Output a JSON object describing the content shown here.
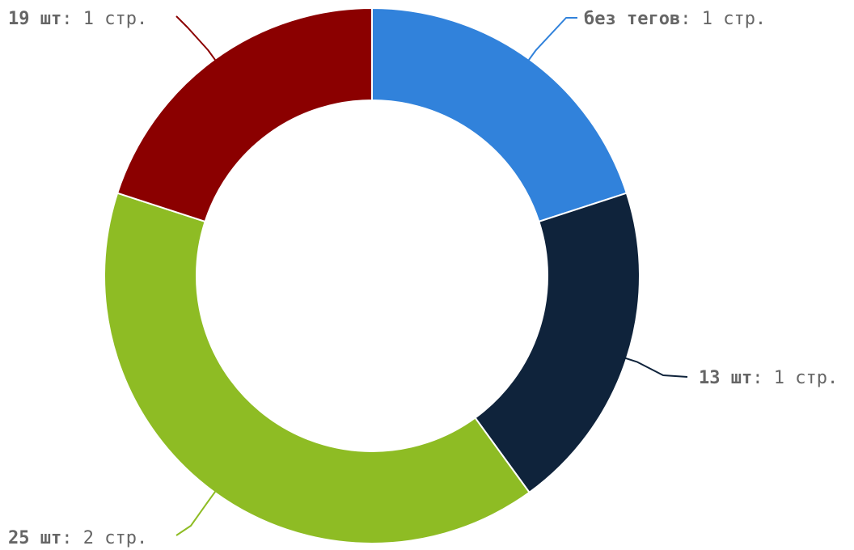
{
  "chart_data": {
    "type": "pie",
    "style": "donut",
    "slices": [
      {
        "name": "без тегов",
        "value": 1,
        "unit": "стр.",
        "color": "#3182db"
      },
      {
        "name": "13 шт",
        "value": 1,
        "unit": "стр.",
        "color": "#0f233b"
      },
      {
        "name": "25 шт",
        "value": 2,
        "unit": "стр.",
        "color": "#8ebc24"
      },
      {
        "name": "19 шт",
        "value": 1,
        "unit": "стр.",
        "color": "#8b0000"
      }
    ],
    "labels": [
      {
        "bold": "без тегов",
        "rest": ": 1 стр."
      },
      {
        "bold": "13 шт",
        "rest": ": 1 стр."
      },
      {
        "bold": "25 шт",
        "rest": ": 2 стр."
      },
      {
        "bold": "19 шт",
        "rest": ": 1 стр."
      }
    ],
    "legend": "none",
    "grid": false
  }
}
